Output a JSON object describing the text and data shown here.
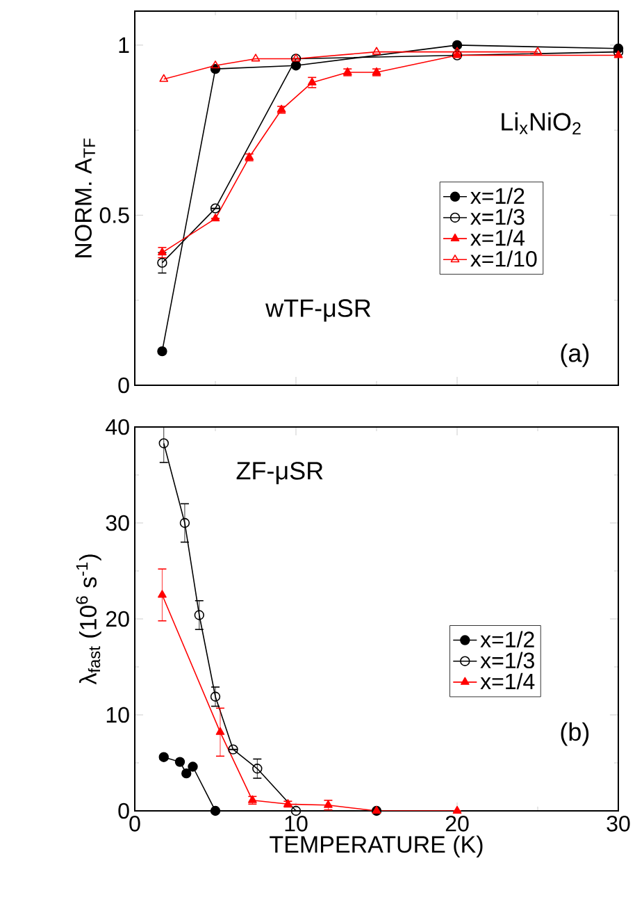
{
  "chart_data": [
    {
      "type": "line",
      "ylabel": "NORM. A$_{TF}$",
      "xlim": [
        0,
        30
      ],
      "xticks": [
        0,
        10,
        20,
        30
      ],
      "ylim": [
        0,
        1.1
      ],
      "yticks": [
        0,
        0.5,
        1
      ],
      "tick_labels": "y",
      "legend": "right",
      "grid": false,
      "line_style": "solid",
      "annotations": [
        "Li$_{x}$NiO$_{2}$",
        "wTF-μSR",
        "(a)"
      ],
      "series": [
        {
          "name": "x=1/2",
          "color": "#000000",
          "marker": "circle",
          "x": [
            1.7,
            5,
            10,
            20,
            30
          ],
          "values": [
            0.1,
            0.93,
            0.94,
            1.0,
            0.99
          ]
        },
        {
          "name": "x=1/3",
          "color": "#000000",
          "marker": "circle-open",
          "x": [
            1.7,
            5,
            10,
            20,
            30
          ],
          "values": [
            0.36,
            0.52,
            0.96,
            0.97,
            0.98
          ],
          "errors": [
            0.03,
            null,
            null,
            null,
            null
          ]
        },
        {
          "name": "x=1/4",
          "color": "#ff0000",
          "marker": "triangle",
          "x": [
            1.7,
            5,
            7.1,
            9.1,
            11,
            13.2,
            15,
            20,
            30
          ],
          "values": [
            0.39,
            0.49,
            0.67,
            0.81,
            0.89,
            0.92,
            0.92,
            0.97,
            0.97
          ],
          "errors": [
            0.015,
            null,
            0.01,
            0.01,
            0.015,
            0.01,
            0.01,
            null,
            null
          ]
        },
        {
          "name": "x=1/10",
          "color": "#ff0000",
          "marker": "triangle-open",
          "x": [
            1.8,
            5,
            7.5,
            10,
            15,
            20,
            25
          ],
          "values": [
            0.9,
            0.94,
            0.96,
            0.96,
            0.98,
            0.98,
            0.98
          ]
        }
      ]
    },
    {
      "type": "line",
      "xlabel": "TEMPERATURE (K)",
      "ylabel": "λ$_{fast}$ (10$^{6}$ s$^{-1}$)",
      "xlim": [
        0,
        30
      ],
      "xticks": [
        0,
        10,
        20,
        30
      ],
      "ylim": [
        0,
        40
      ],
      "yticks": [
        0,
        10,
        20,
        30,
        40
      ],
      "legend": "right",
      "grid": false,
      "line_style": "solid",
      "annotations": [
        "ZF-μSR",
        "(b)"
      ],
      "series": [
        {
          "name": "x=1/2",
          "color": "#000000",
          "marker": "circle",
          "x": [
            1.8,
            2.8,
            3.2,
            3.6,
            5,
            15
          ],
          "values": [
            5.6,
            5.1,
            3.9,
            4.6,
            0,
            0
          ]
        },
        {
          "name": "x=1/3",
          "color": "#000000",
          "marker": "circle-open",
          "x": [
            1.8,
            3.1,
            4,
            5,
            6.1,
            7.6,
            10
          ],
          "values": [
            38.3,
            30,
            20.4,
            11.9,
            6.4,
            4.4,
            0
          ],
          "errors": [
            2,
            2,
            1.5,
            1,
            null,
            1,
            null
          ]
        },
        {
          "name": "x=1/4",
          "color": "#ff0000",
          "marker": "triangle",
          "x": [
            1.7,
            5.3,
            7.3,
            9.5,
            12,
            15,
            20
          ],
          "values": [
            22.5,
            8.2,
            1.1,
            0.7,
            0.6,
            0,
            0
          ],
          "errors": [
            2.7,
            2.5,
            0.4,
            0.3,
            0.5,
            0.2,
            null
          ]
        }
      ]
    }
  ]
}
